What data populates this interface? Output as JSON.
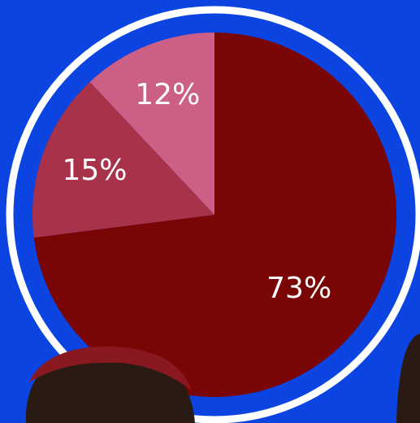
{
  "chart_data": {
    "type": "pie",
    "values": [
      73,
      15,
      12
    ],
    "value_labels": [
      "73%",
      "15%",
      "12%"
    ],
    "colors": [
      "#7a0505",
      "#a8324a",
      "#cc5f85"
    ]
  }
}
